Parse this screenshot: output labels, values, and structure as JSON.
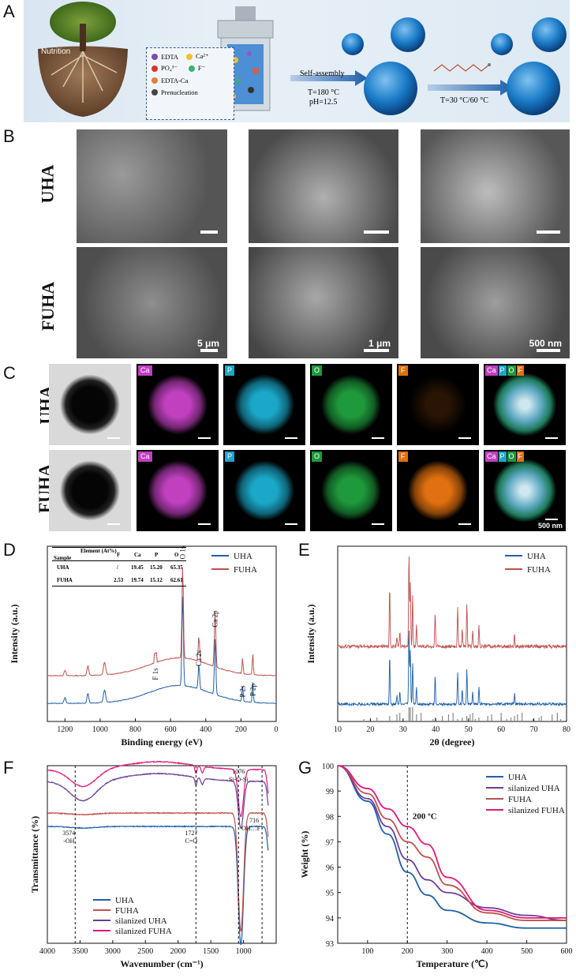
{
  "panels": {
    "a": "A",
    "b": "B",
    "c": "C",
    "d": "D",
    "e": "E",
    "f": "F",
    "g": "G"
  },
  "panelA": {
    "nutrition": "Nutrition",
    "legend": {
      "edta": "EDTA",
      "ca": "Ca²⁺",
      "po4": "PO₄³⁻",
      "f": "F⁻",
      "edta_ca": "EDTA-Ca",
      "prenucleation": "Prenucleation"
    },
    "self_assembly": "Self-assembly",
    "temp": "T=180 °C",
    "ph": "pH=12.5",
    "silane_cond": "T=30 °C/60 °C"
  },
  "panelB": {
    "row1": "UHA",
    "row2": "FUHA",
    "scale1": "5 μm",
    "scale2": "1 μm",
    "scale3": "500 nm"
  },
  "panelC": {
    "row1": "UHA",
    "row2": "FUHA",
    "tags": [
      "Ca",
      "P",
      "O",
      "F"
    ],
    "merge_tags": [
      "Ca",
      "P",
      "O",
      "F"
    ],
    "scale": "500 nm",
    "colors": {
      "Ca": "#c040c0",
      "P": "#1aa7c8",
      "O": "#1e9a3c",
      "F": "#e07010"
    }
  },
  "table": {
    "header_element": "Element (At%)",
    "header_sample": "Sample",
    "cols": [
      "F",
      "Ca",
      "P",
      "O"
    ],
    "rows": [
      {
        "sample": "UHA",
        "values": [
          "/",
          "19.45",
          "15.20",
          "65.35"
        ]
      },
      {
        "sample": "FUHA",
        "values": [
          "2.53",
          "19.74",
          "15.12",
          "62.61"
        ]
      }
    ]
  },
  "chart_data": [
    {
      "type": "line",
      "panel": "D",
      "xlabel": "Binding energy (eV)",
      "ylabel": "Intensity (a.u.)",
      "xlim": [
        1300,
        0
      ],
      "x_ticks": [
        1200,
        1000,
        800,
        600,
        400,
        200,
        0
      ],
      "series": [
        {
          "name": "UHA",
          "color": "#1f5fa8"
        },
        {
          "name": "FUHA",
          "color": "#c0504d"
        }
      ],
      "peaks": [
        {
          "label": "O 1s",
          "x": 531
        },
        {
          "label": "Ca 2p",
          "x": 347
        },
        {
          "label": "Ca 2s",
          "x": 439
        },
        {
          "label": "F 1s",
          "x": 685
        },
        {
          "label": "P 2s",
          "x": 191
        },
        {
          "label": "P 2p",
          "x": 133
        }
      ]
    },
    {
      "type": "line",
      "panel": "E",
      "xlabel": "2θ (degree)",
      "ylabel": "Intensity (a.u.)",
      "xlim": [
        10,
        80
      ],
      "x_ticks": [
        10,
        20,
        30,
        40,
        50,
        60,
        70,
        80
      ],
      "series": [
        {
          "name": "UHA",
          "color": "#1f5fa8"
        },
        {
          "name": "FUHA",
          "color": "#c0504d"
        }
      ],
      "main_peaks": [
        25.9,
        31.8,
        32.9,
        39.8,
        46.7,
        49.5,
        53.2
      ]
    },
    {
      "type": "line",
      "panel": "F",
      "xlabel": "Wavenumber (cm⁻¹)",
      "ylabel": "Transmittance (%)",
      "xlim": [
        4000,
        500
      ],
      "x_ticks": [
        4000,
        3500,
        3000,
        2500,
        2000,
        1500,
        1000
      ],
      "series": [
        {
          "name": "UHA",
          "color": "#1f5fa8"
        },
        {
          "name": "FUHA",
          "color": "#c0504d"
        },
        {
          "name": "silanized UHA",
          "color": "#6a3d9a"
        },
        {
          "name": "silanized FUHA",
          "color": "#e0197a"
        }
      ],
      "annotations": [
        {
          "label": "3574",
          "sub": "-OH",
          "x": 3574
        },
        {
          "label": "1727",
          "sub": "C=O",
          "x": 1727
        },
        {
          "label": "1076",
          "sub": "Si-O-Si",
          "x": 1076
        },
        {
          "label": "716",
          "sub": "OH…F",
          "x": 716
        }
      ]
    },
    {
      "type": "line",
      "panel": "G",
      "xlabel": "Temperature (℃)",
      "ylabel": "Weight (%)",
      "xlim": [
        25,
        600
      ],
      "ylim": [
        93,
        100
      ],
      "x_ticks": [
        100,
        200,
        300,
        400,
        500,
        600
      ],
      "y_ticks": [
        93,
        94,
        95,
        96,
        97,
        98,
        99,
        100
      ],
      "annotation": "200 ºC",
      "series": [
        {
          "name": "UHA",
          "color": "#1f5fa8",
          "x": [
            25,
            100,
            150,
            200,
            250,
            300,
            400,
            500,
            600
          ],
          "y": [
            100,
            98.6,
            97.3,
            95.8,
            94.9,
            94.3,
            93.8,
            93.6,
            93.6
          ]
        },
        {
          "name": "silanized UHA",
          "color": "#6a3d9a",
          "x": [
            25,
            100,
            150,
            200,
            250,
            300,
            400,
            500,
            600
          ],
          "y": [
            100,
            98.7,
            97.6,
            96.3,
            95.5,
            95.0,
            94.4,
            94.1,
            93.9
          ]
        },
        {
          "name": "FUHA",
          "color": "#c0504d",
          "x": [
            25,
            100,
            150,
            200,
            250,
            300,
            400,
            500,
            600
          ],
          "y": [
            100,
            98.9,
            97.9,
            97.0,
            96.4,
            95.3,
            94.2,
            93.9,
            93.9
          ]
        },
        {
          "name": "silanized FUHA",
          "color": "#e0197a",
          "x": [
            25,
            100,
            150,
            200,
            250,
            300,
            400,
            500,
            600
          ],
          "y": [
            100,
            99.1,
            98.3,
            97.6,
            96.9,
            95.6,
            94.3,
            94.0,
            94.0
          ]
        }
      ]
    }
  ]
}
